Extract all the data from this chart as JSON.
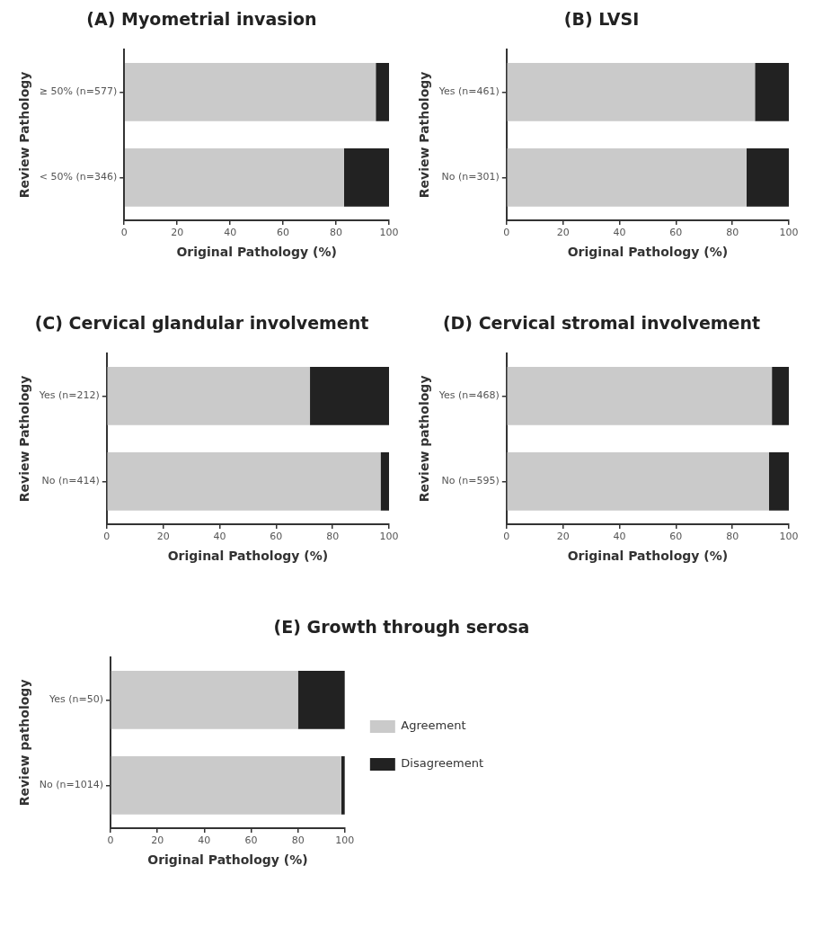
{
  "chart_data": [
    {
      "type": "bar",
      "title": "(A) Myometrial invasion",
      "xlabel": "Original Pathology (%)",
      "ylabel": "Review Pathology",
      "orientation": "horizontal",
      "stacked": true,
      "categories": [
        "≥ 50% (n=577)",
        "< 50% (n=346)"
      ],
      "xlim": [
        0,
        100
      ],
      "xticks": [
        0,
        20,
        40,
        60,
        80,
        100
      ],
      "grid": false,
      "series": [
        {
          "color": "#cacaca",
          "values": [
            95,
            83
          ]
        },
        {
          "color": "#222222",
          "values": [
            5,
            17
          ]
        }
      ]
    },
    {
      "type": "bar",
      "title": "(B) LVSI",
      "xlabel": "Original Pathology (%)",
      "ylabel": "Review Pathology",
      "orientation": "horizontal",
      "stacked": true,
      "categories": [
        "Yes (n=461)",
        "No (n=301)"
      ],
      "xlim": [
        0,
        100
      ],
      "xticks": [
        0,
        20,
        40,
        60,
        80,
        100
      ],
      "grid": false,
      "series": [
        {
          "color": "#cacaca",
          "values": [
            88,
            85
          ]
        },
        {
          "color": "#222222",
          "values": [
            12,
            15
          ]
        }
      ]
    },
    {
      "type": "bar",
      "title": "(C) Cervical glandular involvement",
      "xlabel": "Original Pathology (%)",
      "ylabel": "Review Pathology",
      "orientation": "horizontal",
      "stacked": true,
      "categories": [
        "Yes (n=212)",
        "No (n=414)"
      ],
      "xlim": [
        0,
        100
      ],
      "xticks": [
        0,
        20,
        40,
        60,
        80,
        100
      ],
      "grid": false,
      "series": [
        {
          "color": "#cacaca",
          "values": [
            72,
            97
          ]
        },
        {
          "color": "#222222",
          "values": [
            28,
            3
          ]
        }
      ]
    },
    {
      "type": "bar",
      "title": "(D) Cervical stromal involvement",
      "xlabel": "Original Pathology (%)",
      "ylabel": "Review pathology",
      "orientation": "horizontal",
      "stacked": true,
      "categories": [
        "Yes (n=468)",
        "No (n=595)"
      ],
      "xlim": [
        0,
        100
      ],
      "xticks": [
        0,
        20,
        40,
        60,
        80,
        100
      ],
      "grid": false,
      "series": [
        {
          "color": "#cacaca",
          "values": [
            94,
            93
          ]
        },
        {
          "color": "#222222",
          "values": [
            6,
            7
          ]
        }
      ]
    },
    {
      "type": "bar",
      "title": "(E) Growth through serosa",
      "xlabel": "Original Pathology (%)",
      "ylabel": "Review pathology",
      "orientation": "horizontal",
      "stacked": true,
      "categories": [
        "Yes (n=50)",
        "No (n=1014)"
      ],
      "xlim": [
        0,
        100
      ],
      "xticks": [
        0,
        20,
        40,
        60,
        80,
        100
      ],
      "grid": false,
      "legend": "right",
      "series": [
        {
          "name": "Agreement",
          "color": "#cacaca",
          "values": [
            80,
            98.5
          ]
        },
        {
          "name": "Disagreement",
          "color": "#222222",
          "values": [
            20,
            1.5
          ]
        }
      ]
    }
  ]
}
